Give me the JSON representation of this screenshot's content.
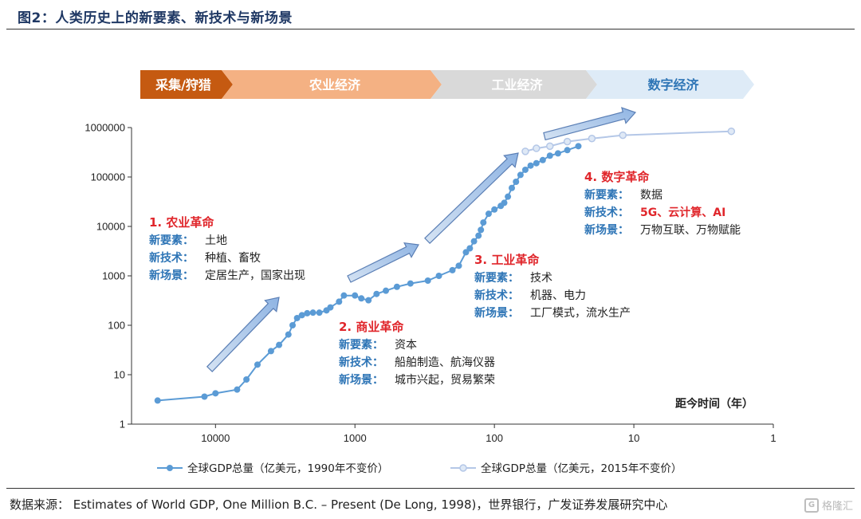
{
  "figure": {
    "title": "图2：人类历史上的新要素、新技术与新场景",
    "source": "数据来源：  Estimates of World GDP, One Million B.C. – Present (De Long, 1998)，世界银行，广发证券发展研究中心",
    "watermark": "格隆汇"
  },
  "stages": [
    {
      "label": "采集/狩猎",
      "fill": "#c55a11",
      "text_color": "#ffffff"
    },
    {
      "label": "农业经济",
      "fill": "#f4b183",
      "text_color": "#ffffff"
    },
    {
      "label": "工业经济",
      "fill": "#d9d9d9",
      "text_color": "#ffffff"
    },
    {
      "label": "数字经济",
      "fill": "#deebf7",
      "text_color": "#2e75b6"
    }
  ],
  "revolutions": [
    {
      "title": "1. 农业革命",
      "rows": [
        {
          "key": "新要素：",
          "val": "土地"
        },
        {
          "key": "新技术：",
          "val": "种植、畜牧"
        },
        {
          "key": "新场景：",
          "val": "定居生产，国家出现"
        }
      ]
    },
    {
      "title": "2. 商业革命",
      "rows": [
        {
          "key": "新要素：",
          "val": "资本"
        },
        {
          "key": "新技术：",
          "val": "船舶制造、航海仪器"
        },
        {
          "key": "新场景：",
          "val": "城市兴起，贸易繁荣"
        }
      ]
    },
    {
      "title": "3. 工业革命",
      "rows": [
        {
          "key": "新要素：",
          "val": "技术"
        },
        {
          "key": "新技术：",
          "val": "机器、电力"
        },
        {
          "key": "新场景：",
          "val": "工厂模式，流水生产"
        }
      ]
    },
    {
      "title": "4. 数字革命",
      "rows": [
        {
          "key": "新要素：",
          "val": "数据"
        },
        {
          "key": "新技术：",
          "val": "5G、云计算、AI",
          "emphasis": true
        },
        {
          "key": "新场景：",
          "val": "万物互联、万物赋能"
        }
      ]
    }
  ],
  "chart_data": {
    "type": "line",
    "xlabel": "距今时间（年）",
    "x_scale": "log",
    "x_reversed": true,
    "y_scale": "log",
    "xlim": [
      40000,
      1
    ],
    "ylim": [
      1,
      1000000
    ],
    "x_ticks": [
      "10000",
      "1000",
      "100",
      "10",
      "1"
    ],
    "y_ticks": [
      "1",
      "10",
      "100",
      "1000",
      "10000",
      "100000",
      "1000000"
    ],
    "grid": false,
    "legend_position": "bottom",
    "series": [
      {
        "name": "全球GDP总量（亿美元，1990年不变价）",
        "color": "#5b9bd5",
        "marker": "filled-circle",
        "x": [
          26000,
          12000,
          10000,
          7000,
          6000,
          5000,
          4000,
          3500,
          3000,
          2800,
          2600,
          2400,
          2200,
          2000,
          1800,
          1600,
          1500,
          1300,
          1200,
          1000,
          900,
          800,
          700,
          600,
          500,
          400,
          300,
          250,
          200,
          180,
          160,
          150,
          140,
          130,
          125,
          120,
          110,
          100,
          90,
          85,
          80,
          75,
          70,
          65,
          60,
          55,
          50,
          45,
          40,
          35,
          30,
          25
        ],
        "y": [
          3,
          3.6,
          4.2,
          5,
          8,
          16,
          30,
          40,
          65,
          100,
          140,
          160,
          175,
          180,
          180,
          200,
          230,
          300,
          400,
          400,
          350,
          320,
          430,
          500,
          600,
          700,
          800,
          1000,
          1300,
          1600,
          3000,
          3600,
          5000,
          6500,
          8500,
          12000,
          18000,
          22000,
          26000,
          30000,
          40000,
          60000,
          80000,
          110000,
          140000,
          170000,
          190000,
          220000,
          270000,
          300000,
          350000,
          420000
        ]
      },
      {
        "name": "全球GDP总量（亿美元，2015年不变价）",
        "color": "#b4c7e7",
        "marker": "hollow-circle",
        "x": [
          60,
          50,
          40,
          30,
          20,
          12,
          2
        ],
        "y": [
          330000,
          380000,
          420000,
          520000,
          600000,
          700000,
          840000
        ]
      }
    ]
  }
}
